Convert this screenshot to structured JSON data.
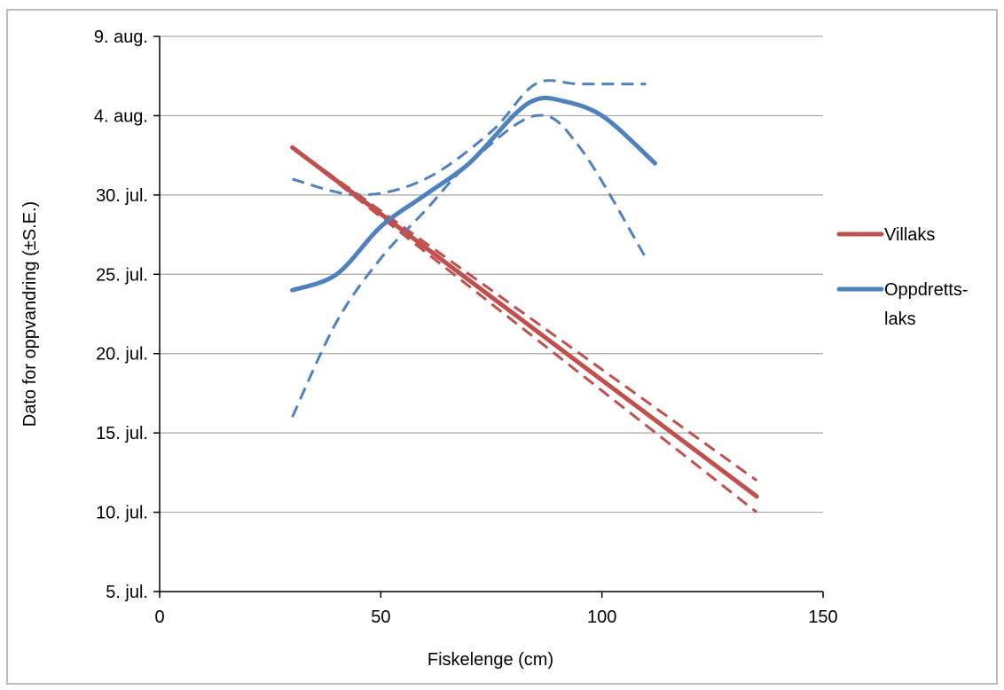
{
  "chart_data": {
    "type": "line",
    "xlabel": "Fiskelenge (cm)",
    "ylabel": "Dato for oppvandring (±S.E.)",
    "xlim": [
      0,
      150
    ],
    "x_ticks": [
      0,
      50,
      100,
      150
    ],
    "ylim": [
      "5. jul.",
      "9. aug."
    ],
    "y_ticks": [
      "5. jul.",
      "10. jul.",
      "15. jul.",
      "20. jul.",
      "25. jul.",
      "30. jul.",
      "4. aug.",
      "9. aug."
    ],
    "grid": "horizontal",
    "legend_position": "right",
    "series": [
      {
        "name": "Villaks",
        "color": "#c0504d",
        "style": "solid",
        "points": [
          [
            30,
            "2. aug."
          ],
          [
            135,
            "11. jul."
          ]
        ]
      },
      {
        "name": "Villaks upper S.E.",
        "color": "#c0504d",
        "style": "dashed",
        "points": [
          [
            30,
            "2. aug."
          ],
          [
            135,
            "12. jul."
          ]
        ]
      },
      {
        "name": "Villaks lower S.E.",
        "color": "#c0504d",
        "style": "dashed",
        "points": [
          [
            30,
            "2. aug."
          ],
          [
            135,
            "10. jul."
          ]
        ]
      },
      {
        "name": "Oppdretts-laks",
        "color": "#4f81bd",
        "style": "solid",
        "points": [
          [
            30,
            "24. jul."
          ],
          [
            40,
            "25. jul."
          ],
          [
            50,
            "28. jul."
          ],
          [
            60,
            "30. jul."
          ],
          [
            70,
            "1. aug."
          ],
          [
            80,
            "4. aug."
          ],
          [
            85,
            "5. aug."
          ],
          [
            90,
            "5. aug."
          ],
          [
            100,
            "4. aug."
          ],
          [
            112,
            "1. aug."
          ]
        ]
      },
      {
        "name": "Oppdretts-laks upper S.E.",
        "color": "#4f81bd",
        "style": "dashed",
        "points": [
          [
            30,
            "31. jul."
          ],
          [
            45,
            "30. jul."
          ],
          [
            60,
            "31. jul."
          ],
          [
            75,
            "3. aug."
          ],
          [
            85,
            "6. aug."
          ],
          [
            95,
            "6. aug."
          ],
          [
            110,
            "6. aug."
          ]
        ]
      },
      {
        "name": "Oppdretts-laks lower S.E.",
        "color": "#4f81bd",
        "style": "dashed",
        "points": [
          [
            30,
            "16. jul."
          ],
          [
            40,
            "22. jul."
          ],
          [
            50,
            "26. jul."
          ],
          [
            60,
            "29. jul."
          ],
          [
            70,
            "1. aug."
          ],
          [
            85,
            "4. aug."
          ],
          [
            95,
            "2. aug."
          ],
          [
            110,
            "26. jul."
          ]
        ]
      }
    ]
  },
  "legend": {
    "items": [
      {
        "label_lines": [
          "Villaks"
        ],
        "color": "#c0504d"
      },
      {
        "label_lines": [
          "Oppdretts-",
          "laks"
        ],
        "color": "#4f81bd"
      }
    ]
  }
}
